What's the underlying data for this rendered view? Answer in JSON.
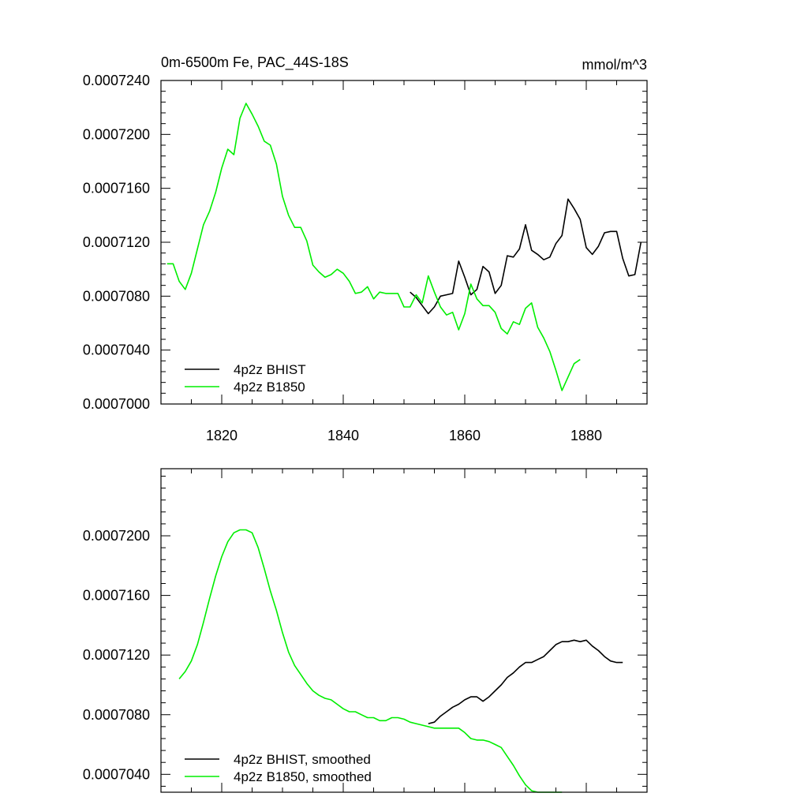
{
  "colors": {
    "bhist": "#000000",
    "b1850": "#00ee00"
  },
  "chart_data": [
    {
      "type": "line",
      "title_left": "0m-6500m Fe, PAC_44S-18S",
      "title_right": "mmol/m^3",
      "xlim": [
        1810,
        1890
      ],
      "ylim": [
        0.0007,
        0.000724
      ],
      "x_ticks": [
        1820,
        1840,
        1860,
        1880
      ],
      "x_tick_labels": [
        "1820",
        "1840",
        "1860",
        "1880"
      ],
      "y_ticks": [
        0.0007,
        0.000704,
        0.000708,
        0.000712,
        0.000716,
        0.00072,
        0.000724
      ],
      "y_tick_labels": [
        "0.0007000",
        "0.0007040",
        "0.0007080",
        "0.0007120",
        "0.0007160",
        "0.0007200",
        "0.0007240"
      ],
      "series": [
        {
          "name": "4p2z BHIST",
          "color": "#000000",
          "x": [
            1851,
            1852,
            1853,
            1854,
            1855,
            1856,
            1857,
            1858,
            1859,
            1860,
            1861,
            1862,
            1863,
            1864,
            1865,
            1866,
            1867,
            1868,
            1869,
            1870,
            1871,
            1872,
            1873,
            1874,
            1875,
            1876,
            1877,
            1878,
            1879,
            1880,
            1881,
            1882,
            1883,
            1884,
            1885,
            1886,
            1887,
            1888,
            1889
          ],
          "values": [
            0.0007083,
            0.0007079,
            0.0007073,
            0.0007067,
            0.0007072,
            0.000708,
            0.0007081,
            0.0007082,
            0.0007106,
            0.0007094,
            0.0007081,
            0.0007085,
            0.0007102,
            0.0007098,
            0.0007082,
            0.0007088,
            0.000711,
            0.0007109,
            0.0007115,
            0.0007133,
            0.0007114,
            0.0007111,
            0.0007107,
            0.0007109,
            0.0007119,
            0.0007125,
            0.0007152,
            0.0007145,
            0.0007137,
            0.0007116,
            0.0007111,
            0.0007117,
            0.0007127,
            0.0007128,
            0.0007128,
            0.0007108,
            0.0007095,
            0.0007096,
            0.000712
          ]
        },
        {
          "name": "4p2z B1850",
          "color": "#00ee00",
          "x": [
            1811,
            1812,
            1813,
            1814,
            1815,
            1816,
            1817,
            1818,
            1819,
            1820,
            1821,
            1822,
            1823,
            1824,
            1825,
            1826,
            1827,
            1828,
            1829,
            1830,
            1831,
            1832,
            1833,
            1834,
            1835,
            1836,
            1837,
            1838,
            1839,
            1840,
            1841,
            1842,
            1843,
            1844,
            1845,
            1846,
            1847,
            1848,
            1849,
            1850,
            1851,
            1852,
            1853,
            1854,
            1855,
            1856,
            1857,
            1858,
            1859,
            1860,
            1861,
            1862,
            1863,
            1864,
            1865,
            1866,
            1867,
            1868,
            1869,
            1870,
            1871,
            1872,
            1873,
            1874,
            1875,
            1876,
            1877,
            1878,
            1879
          ],
          "values": [
            0.0007104,
            0.0007104,
            0.0007091,
            0.0007085,
            0.0007097,
            0.0007115,
            0.0007133,
            0.0007143,
            0.0007157,
            0.0007175,
            0.0007189,
            0.0007185,
            0.0007212,
            0.0007223,
            0.0007215,
            0.0007206,
            0.0007195,
            0.0007192,
            0.0007178,
            0.0007154,
            0.000714,
            0.0007131,
            0.0007131,
            0.0007121,
            0.0007103,
            0.0007098,
            0.0007094,
            0.0007096,
            0.00071,
            0.0007097,
            0.0007091,
            0.0007082,
            0.0007083,
            0.0007087,
            0.0007078,
            0.0007083,
            0.0007082,
            0.0007082,
            0.0007082,
            0.0007072,
            0.0007072,
            0.0007081,
            0.0007075,
            0.0007095,
            0.0007083,
            0.0007072,
            0.0007066,
            0.0007068,
            0.0007055,
            0.0007067,
            0.0007089,
            0.0007078,
            0.0007073,
            0.0007073,
            0.0007068,
            0.0007056,
            0.0007052,
            0.0007061,
            0.0007059,
            0.0007071,
            0.0007075,
            0.0007057,
            0.0007049,
            0.0007039,
            0.0007025,
            0.000701,
            0.000702,
            0.000703,
            0.0007033
          ]
        }
      ],
      "legend": {
        "position": "bottom-left",
        "labels": [
          "4p2z BHIST",
          "4p2z B1850"
        ]
      }
    },
    {
      "type": "line",
      "xlim": [
        1810,
        1890
      ],
      "ylim": [
        0.0007028,
        0.0007245
      ],
      "x_ticks": [
        1820,
        1840,
        1860,
        1880
      ],
      "y_ticks": [
        0.000704,
        0.000708,
        0.000712,
        0.000716,
        0.00072
      ],
      "y_tick_labels": [
        "0.0007040",
        "0.0007080",
        "0.0007120",
        "0.0007160",
        "0.0007200"
      ],
      "series": [
        {
          "name": "4p2z BHIST, smoothed",
          "color": "#000000",
          "x": [
            1854,
            1855,
            1856,
            1857,
            1858,
            1859,
            1860,
            1861,
            1862,
            1863,
            1864,
            1865,
            1866,
            1867,
            1868,
            1869,
            1870,
            1871,
            1872,
            1873,
            1874,
            1875,
            1876,
            1877,
            1878,
            1879,
            1880,
            1881,
            1882,
            1883,
            1884,
            1885,
            1886
          ],
          "values": [
            0.0007074,
            0.0007075,
            0.0007079,
            0.0007082,
            0.0007085,
            0.0007087,
            0.000709,
            0.0007092,
            0.0007092,
            0.0007089,
            0.0007092,
            0.0007096,
            0.00071,
            0.0007105,
            0.0007108,
            0.0007112,
            0.0007115,
            0.0007115,
            0.0007117,
            0.0007119,
            0.0007123,
            0.0007127,
            0.0007129,
            0.0007129,
            0.000713,
            0.0007129,
            0.000713,
            0.0007126,
            0.0007123,
            0.0007119,
            0.0007116,
            0.0007115,
            0.0007115
          ]
        },
        {
          "name": "4p2z B1850, smoothed",
          "color": "#00ee00",
          "x": [
            1813,
            1814,
            1815,
            1816,
            1817,
            1818,
            1819,
            1820,
            1821,
            1822,
            1823,
            1824,
            1825,
            1826,
            1827,
            1828,
            1829,
            1830,
            1831,
            1832,
            1833,
            1834,
            1835,
            1836,
            1837,
            1838,
            1839,
            1840,
            1841,
            1842,
            1843,
            1844,
            1845,
            1846,
            1847,
            1848,
            1849,
            1850,
            1851,
            1852,
            1853,
            1854,
            1855,
            1856,
            1857,
            1858,
            1859,
            1860,
            1861,
            1862,
            1863,
            1864,
            1865,
            1866,
            1867,
            1868,
            1869,
            1870,
            1871,
            1872,
            1873,
            1874,
            1875,
            1876
          ],
          "values": [
            0.0007104,
            0.0007109,
            0.0007116,
            0.0007127,
            0.0007142,
            0.0007158,
            0.0007173,
            0.0007186,
            0.0007196,
            0.0007202,
            0.0007204,
            0.0007204,
            0.0007202,
            0.0007192,
            0.0007178,
            0.0007163,
            0.000715,
            0.0007135,
            0.0007122,
            0.0007113,
            0.0007107,
            0.0007101,
            0.0007096,
            0.0007093,
            0.0007091,
            0.000709,
            0.0007087,
            0.0007084,
            0.0007082,
            0.0007082,
            0.000708,
            0.0007078,
            0.0007078,
            0.0007076,
            0.0007076,
            0.0007078,
            0.0007078,
            0.0007077,
            0.0007075,
            0.0007074,
            0.0007073,
            0.0007072,
            0.0007071,
            0.0007071,
            0.0007071,
            0.0007071,
            0.0007071,
            0.0007068,
            0.0007064,
            0.0007063,
            0.0007063,
            0.0007062,
            0.000706,
            0.0007058,
            0.0007052,
            0.0007046,
            0.0007039,
            0.0007033,
            0.0007029,
            0.0007028,
            0.0007028,
            0.0007028,
            0.0007028,
            0.0007028
          ]
        }
      ],
      "legend": {
        "position": "bottom-left",
        "labels": [
          "4p2z BHIST, smoothed",
          "4p2z B1850, smoothed"
        ]
      }
    }
  ]
}
